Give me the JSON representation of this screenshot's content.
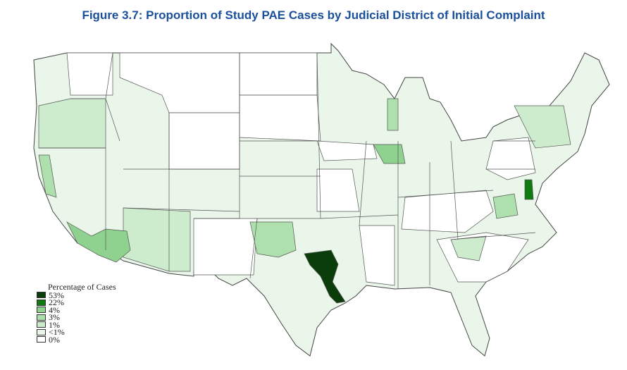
{
  "title": "Figure 3.7: Proportion of Study PAE Cases by Judicial District of Initial Complaint",
  "legend": {
    "title": "Percentage of Cases",
    "items": [
      {
        "label": "53%",
        "color": "#0b3d0b"
      },
      {
        "label": "22%",
        "color": "#0e7a10"
      },
      {
        "label": "4%",
        "color": "#8fd18f"
      },
      {
        "label": "3%",
        "color": "#aee0ae"
      },
      {
        "label": "1%",
        "color": "#cdebcd"
      },
      {
        "label": "<1%",
        "color": "#e9f6e9"
      },
      {
        "label": "0%",
        "color": "#ffffff"
      }
    ]
  }
}
